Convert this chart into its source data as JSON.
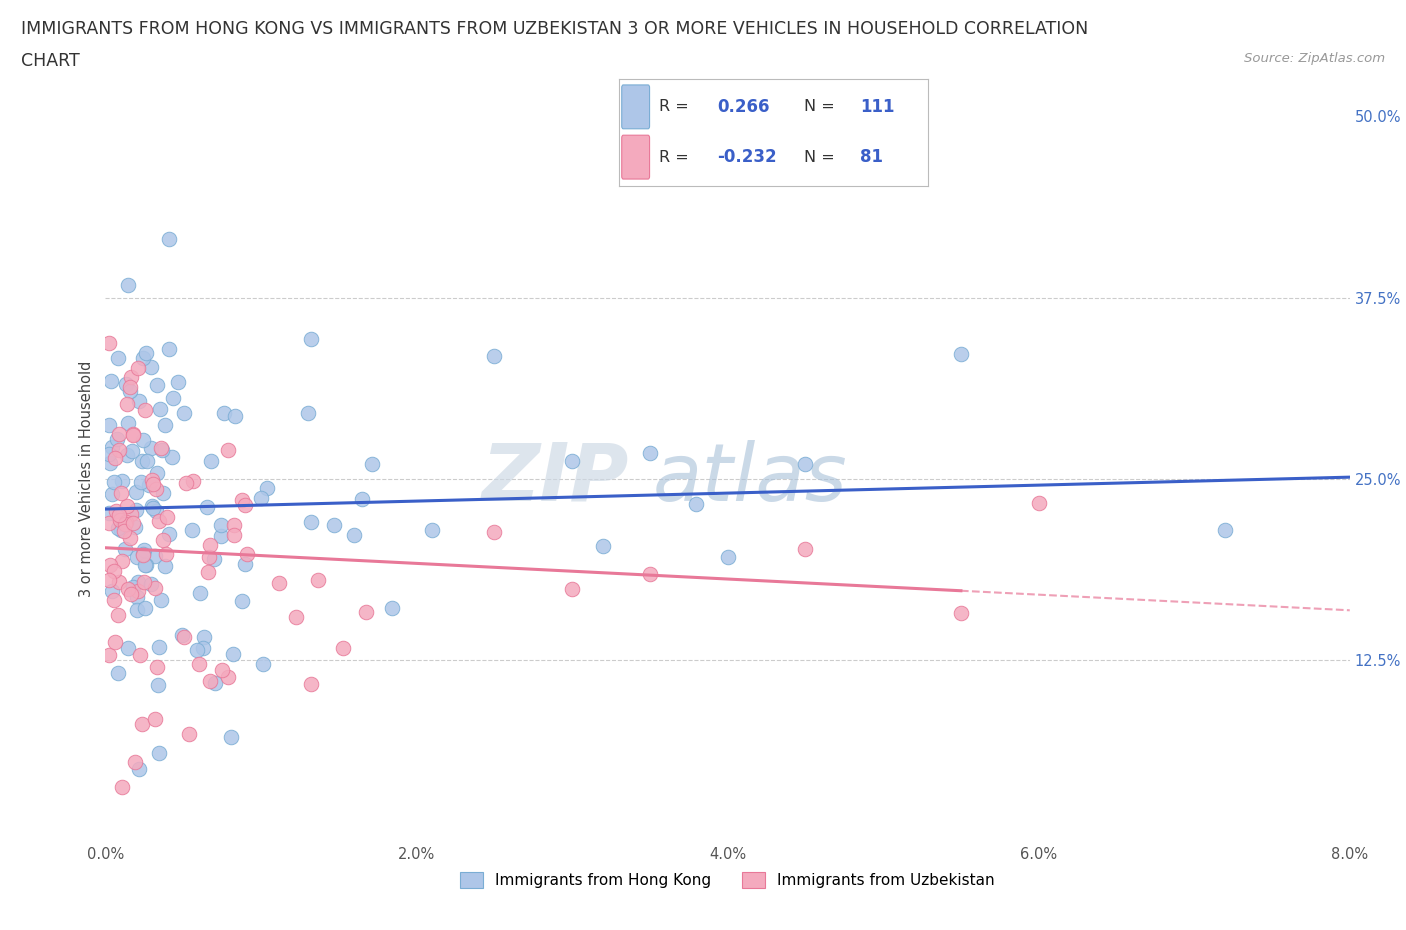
{
  "title_line1": "IMMIGRANTS FROM HONG KONG VS IMMIGRANTS FROM UZBEKISTAN 3 OR MORE VEHICLES IN HOUSEHOLD CORRELATION",
  "title_line2": "CHART",
  "source_text": "Source: ZipAtlas.com",
  "ylabel": "3 or more Vehicles in Household",
  "x_min": 0.0,
  "x_max": 8.0,
  "y_min": 0.0,
  "y_max": 50.0,
  "hk_R": 0.266,
  "hk_N": 111,
  "uz_R": -0.232,
  "uz_N": 81,
  "hk_color": "#aec6e8",
  "hk_edge_color": "#7aadd4",
  "uz_color": "#f4aabe",
  "uz_edge_color": "#e87898",
  "hk_line_color": "#3a5fc8",
  "uz_line_color": "#e87898",
  "watermark_zip_color": "#d0dce8",
  "watermark_atlas_color": "#b8cce0",
  "background_color": "#ffffff",
  "title_color": "#333333",
  "ytick_color": "#4472C4",
  "xtick_color": "#555555",
  "hk_trend_intercept": 22.0,
  "hk_trend_slope": 1.4,
  "uz_trend_intercept": 22.5,
  "uz_trend_slope": -2.5
}
